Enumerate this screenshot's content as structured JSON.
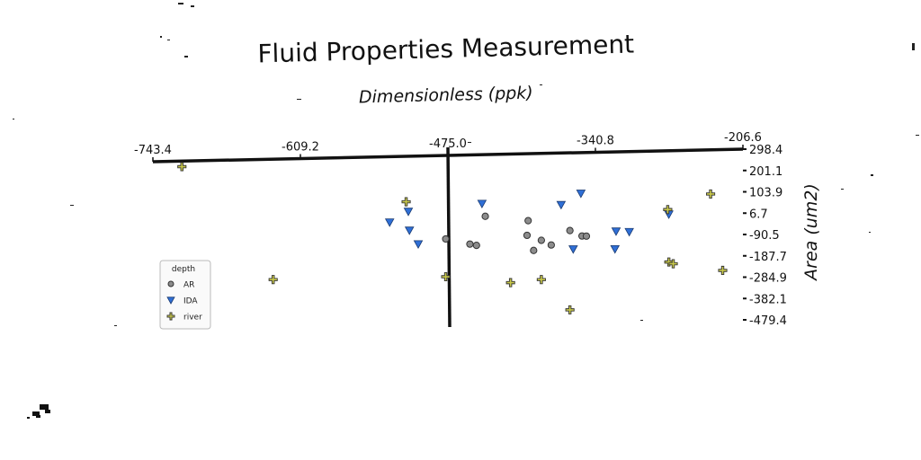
{
  "chart_data": {
    "type": "scatter",
    "title": "Fluid Properties Measurement",
    "xlabel": "Dimensionless (ppk)",
    "ylabel": "Area (um2)",
    "xlim": [
      -743.4,
      -206.6
    ],
    "ylim": [
      -479.4,
      298.4
    ],
    "x_ticks": [
      "-743.4",
      "-609.2",
      "-475.0",
      "-340.8",
      "-206.6"
    ],
    "y_ticks": [
      "298.4",
      "201.1",
      "103.9",
      "6.7",
      "-90.5",
      "-187.7",
      "-284.9",
      "-382.1",
      "-479.4"
    ],
    "grid": false,
    "legend": {
      "title": "depth",
      "placement": "left"
    },
    "series": [
      {
        "name": "AR",
        "marker": "circle",
        "color": "#8c8c8c",
        "points": [
          {
            "x": -477,
            "y": -112
          },
          {
            "x": -455,
            "y": -140
          },
          {
            "x": -449,
            "y": -147
          },
          {
            "x": -441,
            "y": -5
          },
          {
            "x": -403,
            "y": -103
          },
          {
            "x": -402,
            "y": -31
          },
          {
            "x": -397,
            "y": -178
          },
          {
            "x": -390,
            "y": -129
          },
          {
            "x": -381,
            "y": -153
          },
          {
            "x": -364,
            "y": -84
          },
          {
            "x": -353,
            "y": -112
          },
          {
            "x": -349,
            "y": -113
          }
        ]
      },
      {
        "name": "IDA",
        "marker": "triangle-down",
        "color": "#2f6fd6",
        "points": [
          {
            "x": -528,
            "y": -24
          },
          {
            "x": -511,
            "y": 27
          },
          {
            "x": -510,
            "y": -66
          },
          {
            "x": -502,
            "y": -134
          },
          {
            "x": -444,
            "y": 58
          },
          {
            "x": -372,
            "y": 44
          },
          {
            "x": -361,
            "y": -175
          },
          {
            "x": -354,
            "y": 98
          },
          {
            "x": -323,
            "y": -179
          },
          {
            "x": -322,
            "y": -92
          },
          {
            "x": -310,
            "y": -96
          },
          {
            "x": -274,
            "y": -14
          }
        ]
      },
      {
        "name": "river",
        "marker": "plus",
        "color": "#c8c84a",
        "points": [
          {
            "x": -717,
            "y": 271
          },
          {
            "x": -634,
            "y": -294
          },
          {
            "x": -513,
            "y": 75
          },
          {
            "x": -477,
            "y": -298
          },
          {
            "x": -418,
            "y": -334
          },
          {
            "x": -390,
            "y": -322
          },
          {
            "x": -364,
            "y": -474
          },
          {
            "x": -275,
            "y": 9
          },
          {
            "x": -274,
            "y": -249
          },
          {
            "x": -270,
            "y": -258
          },
          {
            "x": -236,
            "y": 81
          },
          {
            "x": -225,
            "y": -296
          }
        ]
      }
    ]
  }
}
